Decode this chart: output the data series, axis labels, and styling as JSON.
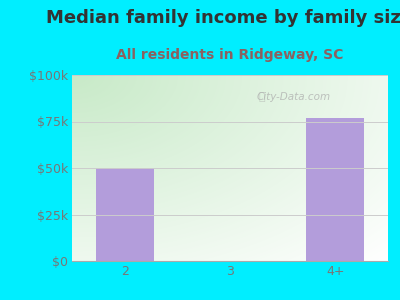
{
  "title": "Median family income by family size",
  "subtitle": "All residents in Ridgeway, SC",
  "categories": [
    "2",
    "3",
    "4+"
  ],
  "values": [
    50000,
    0,
    77000
  ],
  "bar_color": "#b39ddb",
  "background_color": "#00eeff",
  "title_color": "#333333",
  "subtitle_color": "#8b6060",
  "tick_label_color": "#777777",
  "ylim": [
    0,
    100000
  ],
  "yticks": [
    0,
    25000,
    50000,
    75000,
    100000
  ],
  "ytick_labels": [
    "$0",
    "$25k",
    "$50k",
    "$75k",
    "$100k"
  ],
  "watermark": "City-Data.com",
  "title_fontsize": 13,
  "subtitle_fontsize": 10,
  "tick_fontsize": 9,
  "plot_grad_left": "#c8eac8",
  "plot_grad_right": "#f8fff8",
  "plot_grad_top": "#f0f8ff",
  "grid_color": "#cccccc"
}
